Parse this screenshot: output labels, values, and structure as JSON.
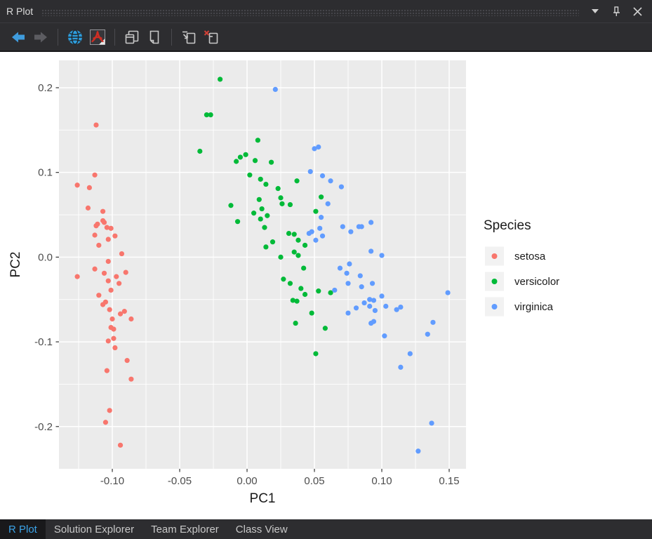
{
  "titlebar": {
    "title": "R Plot",
    "icons": [
      "chevron-down-icon",
      "pin-icon",
      "close-icon"
    ]
  },
  "toolbar": {
    "buttons": [
      {
        "name": "back",
        "icon": "arrow-left-icon",
        "enabled": true
      },
      {
        "name": "forward",
        "icon": "arrow-right-icon",
        "enabled": false
      },
      {
        "name": "export-as-web-page",
        "icon": "globe-icon",
        "enabled": true
      },
      {
        "name": "export-as-pdf",
        "icon": "pdf-icon",
        "enabled": true
      },
      {
        "name": "copy-as-bitmap",
        "icon": "copy-bitmap-icon",
        "enabled": true
      },
      {
        "name": "copy-as-metafile",
        "icon": "copy-metafile-icon",
        "enabled": true
      },
      {
        "name": "copy-to-new-plot-window",
        "icon": "new-window-icon",
        "enabled": true
      },
      {
        "name": "remove-plot",
        "icon": "remove-plot-icon",
        "enabled": true
      }
    ]
  },
  "bottom_tabs": {
    "tabs": [
      "R Plot",
      "Solution Explorer",
      "Team Explorer",
      "Class View"
    ],
    "active_index": 0,
    "active_color": "#3ba3e8"
  },
  "chart_data": {
    "type": "scatter",
    "title": "",
    "xlabel": "PC1",
    "ylabel": "PC2",
    "xlim": [
      -0.1396,
      0.1625
    ],
    "ylim": [
      -0.2499,
      0.2323
    ],
    "x_ticks": [
      -0.1,
      -0.05,
      0.0,
      0.05,
      0.1,
      0.15
    ],
    "x_tick_labels": [
      "-0.10",
      "-0.05",
      "0.00",
      "0.05",
      "0.10",
      "0.15"
    ],
    "y_ticks": [
      0.2,
      0.1,
      0.0,
      -0.1,
      -0.2
    ],
    "y_tick_labels": [
      "0.2",
      "0.1",
      "0.0",
      "-0.1",
      "-0.2"
    ],
    "grid": true,
    "panel_bg": "#EBEBEB",
    "grid_color": "#FFFFFF",
    "tick_text_color": "#4d4d4d",
    "axis_title_color": "#1a1a1a",
    "legend": {
      "title": "Species",
      "position": "right",
      "key_bg": "#F2F2F2",
      "entries": [
        {
          "label": "setosa",
          "color": "#F8766D"
        },
        {
          "label": "versicolor",
          "color": "#00BA38"
        },
        {
          "label": "virginica",
          "color": "#619CFF"
        }
      ]
    },
    "series": [
      {
        "name": "setosa",
        "color": "#F8766D",
        "points": [
          [
            -0.112,
            0.156
          ],
          [
            -0.113,
            0.097
          ],
          [
            -0.126,
            0.085
          ],
          [
            -0.117,
            0.082
          ],
          [
            -0.118,
            0.058
          ],
          [
            -0.107,
            0.054
          ],
          [
            -0.111,
            0.039
          ],
          [
            -0.112,
            0.037
          ],
          [
            -0.107,
            0.043
          ],
          [
            -0.106,
            0.041
          ],
          [
            -0.104,
            0.035
          ],
          [
            -0.101,
            0.034
          ],
          [
            -0.113,
            0.026
          ],
          [
            -0.103,
            0.021
          ],
          [
            -0.098,
            0.025
          ],
          [
            -0.11,
            0.014
          ],
          [
            -0.093,
            0.004
          ],
          [
            -0.103,
            -0.005
          ],
          [
            -0.113,
            -0.014
          ],
          [
            -0.106,
            -0.019
          ],
          [
            -0.09,
            -0.018
          ],
          [
            -0.126,
            -0.023
          ],
          [
            -0.097,
            -0.023
          ],
          [
            -0.103,
            -0.028
          ],
          [
            -0.095,
            -0.031
          ],
          [
            -0.101,
            -0.039
          ],
          [
            -0.11,
            -0.045
          ],
          [
            -0.105,
            -0.053
          ],
          [
            -0.107,
            -0.056
          ],
          [
            -0.102,
            -0.062
          ],
          [
            -0.094,
            -0.067
          ],
          [
            -0.091,
            -0.064
          ],
          [
            -0.086,
            -0.073
          ],
          [
            -0.1,
            -0.073
          ],
          [
            -0.101,
            -0.083
          ],
          [
            -0.099,
            -0.085
          ],
          [
            -0.099,
            -0.096
          ],
          [
            -0.103,
            -0.099
          ],
          [
            -0.098,
            -0.107
          ],
          [
            -0.089,
            -0.122
          ],
          [
            -0.104,
            -0.134
          ],
          [
            -0.086,
            -0.144
          ],
          [
            -0.102,
            -0.181
          ],
          [
            -0.105,
            -0.195
          ],
          [
            -0.094,
            -0.222
          ]
        ]
      },
      {
        "name": "versicolor",
        "color": "#00BA38",
        "points": [
          [
            -0.02,
            0.21
          ],
          [
            -0.03,
            0.168
          ],
          [
            -0.027,
            0.168
          ],
          [
            0.008,
            0.138
          ],
          [
            -0.035,
            0.125
          ],
          [
            -0.005,
            0.118
          ],
          [
            -0.001,
            0.121
          ],
          [
            -0.008,
            0.113
          ],
          [
            0.006,
            0.114
          ],
          [
            0.018,
            0.112
          ],
          [
            0.002,
            0.097
          ],
          [
            0.01,
            0.092
          ],
          [
            0.014,
            0.086
          ],
          [
            0.023,
            0.081
          ],
          [
            0.025,
            0.07
          ],
          [
            0.009,
            0.068
          ],
          [
            -0.012,
            0.061
          ],
          [
            0.011,
            0.057
          ],
          [
            0.005,
            0.052
          ],
          [
            0.015,
            0.049
          ],
          [
            0.01,
            0.045
          ],
          [
            -0.007,
            0.042
          ],
          [
            0.013,
            0.035
          ],
          [
            0.037,
            0.09
          ],
          [
            0.055,
            0.071
          ],
          [
            0.026,
            0.063
          ],
          [
            0.032,
            0.062
          ],
          [
            0.051,
            0.054
          ],
          [
            0.031,
            0.028
          ],
          [
            0.035,
            0.027
          ],
          [
            0.038,
            0.02
          ],
          [
            0.043,
            0.014
          ],
          [
            0.019,
            0.018
          ],
          [
            0.014,
            0.012
          ],
          [
            0.035,
            0.006
          ],
          [
            0.038,
            0.002
          ],
          [
            0.025,
            0.0
          ],
          [
            0.042,
            -0.013
          ],
          [
            0.027,
            -0.026
          ],
          [
            0.032,
            -0.031
          ],
          [
            0.04,
            -0.037
          ],
          [
            0.043,
            -0.044
          ],
          [
            0.053,
            -0.04
          ],
          [
            0.062,
            -0.042
          ],
          [
            0.034,
            -0.051
          ],
          [
            0.037,
            -0.052
          ],
          [
            0.048,
            -0.066
          ],
          [
            0.036,
            -0.078
          ],
          [
            0.058,
            -0.084
          ],
          [
            0.051,
            -0.114
          ]
        ]
      },
      {
        "name": "virginica",
        "color": "#619CFF",
        "points": [
          [
            0.021,
            0.198
          ],
          [
            0.05,
            0.128
          ],
          [
            0.053,
            0.13
          ],
          [
            0.047,
            0.101
          ],
          [
            0.056,
            0.096
          ],
          [
            0.062,
            0.09
          ],
          [
            0.07,
            0.083
          ],
          [
            0.06,
            0.063
          ],
          [
            0.055,
            0.047
          ],
          [
            0.054,
            0.034
          ],
          [
            0.071,
            0.036
          ],
          [
            0.083,
            0.036
          ],
          [
            0.085,
            0.036
          ],
          [
            0.092,
            0.041
          ],
          [
            0.077,
            0.03
          ],
          [
            0.046,
            0.028
          ],
          [
            0.048,
            0.03
          ],
          [
            0.051,
            0.02
          ],
          [
            0.056,
            0.025
          ],
          [
            0.092,
            0.007
          ],
          [
            0.1,
            0.002
          ],
          [
            0.076,
            -0.008
          ],
          [
            0.069,
            -0.013
          ],
          [
            0.074,
            -0.019
          ],
          [
            0.084,
            -0.022
          ],
          [
            0.075,
            -0.031
          ],
          [
            0.085,
            -0.035
          ],
          [
            0.093,
            -0.031
          ],
          [
            0.065,
            -0.039
          ],
          [
            0.087,
            -0.054
          ],
          [
            0.091,
            -0.05
          ],
          [
            0.149,
            -0.042
          ],
          [
            0.1,
            -0.046
          ],
          [
            0.094,
            -0.051
          ],
          [
            0.103,
            -0.058
          ],
          [
            0.111,
            -0.062
          ],
          [
            0.114,
            -0.059
          ],
          [
            0.095,
            -0.063
          ],
          [
            0.075,
            -0.066
          ],
          [
            0.081,
            -0.06
          ],
          [
            0.091,
            -0.058
          ],
          [
            0.094,
            -0.076
          ],
          [
            0.092,
            -0.078
          ],
          [
            0.138,
            -0.077
          ],
          [
            0.134,
            -0.091
          ],
          [
            0.102,
            -0.093
          ],
          [
            0.121,
            -0.114
          ],
          [
            0.114,
            -0.13
          ],
          [
            0.137,
            -0.196
          ],
          [
            0.127,
            -0.229
          ]
        ]
      }
    ]
  }
}
